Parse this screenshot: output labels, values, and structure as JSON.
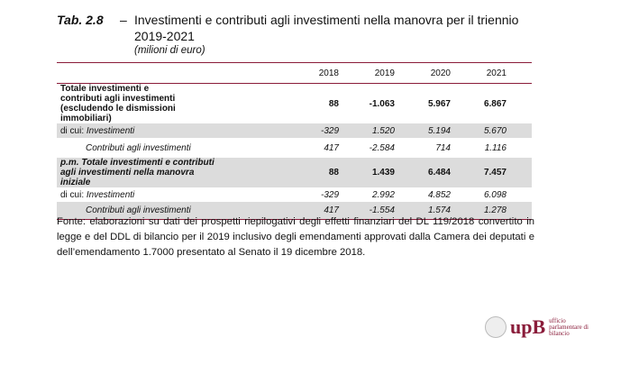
{
  "title": {
    "number": "Tab. 2.8",
    "dash": "–",
    "text": "Investimenti e contributi agli investimenti nella manovra per il triennio 2019-2021",
    "unit": "(milioni di euro)"
  },
  "table": {
    "columns": [
      "",
      "2018",
      "2019",
      "2020",
      "2021"
    ],
    "rows": [
      {
        "label": "Totale investimenti e contributi agli investimenti (escludendo le dismissioni immobiliari)",
        "values": [
          "88",
          "-1.063",
          "5.967",
          "6.867"
        ]
      },
      {
        "prefix": "di cui: ",
        "label": "Investimenti",
        "values": [
          "-329",
          "1.520",
          "5.194",
          "5.670"
        ]
      },
      {
        "label": "Contributi agli investimenti",
        "values": [
          "417",
          "-2.584",
          "714",
          "1.116"
        ]
      },
      {
        "label": "p.m. Totale investimenti e contributi agli investimenti nella manovra iniziale",
        "values": [
          "88",
          "1.439",
          "6.484",
          "7.457"
        ]
      },
      {
        "prefix": "di cui: ",
        "label": "Investimenti",
        "values": [
          "-329",
          "2.992",
          "4.852",
          "6.098"
        ]
      },
      {
        "label": "Contributi agli investimenti",
        "values": [
          "417",
          "-1.554",
          "1.574",
          "1.278"
        ]
      }
    ]
  },
  "footnote": "Fonte: elaborazioni su dati dei prospetti riepilogativi degli effetti finanziari del DL 119/2018 convertito in legge e del DDL di bilancio per il 2019 inclusivo degli emendamenti approvati dalla Camera dei deputati e dell’emendamento 1.7000 presentato al Senato il 19 dicembre 2018.",
  "logo": {
    "mark": "upB",
    "text": "ufficio parlamentare di bilancio",
    "color": "#8a1c3a"
  }
}
